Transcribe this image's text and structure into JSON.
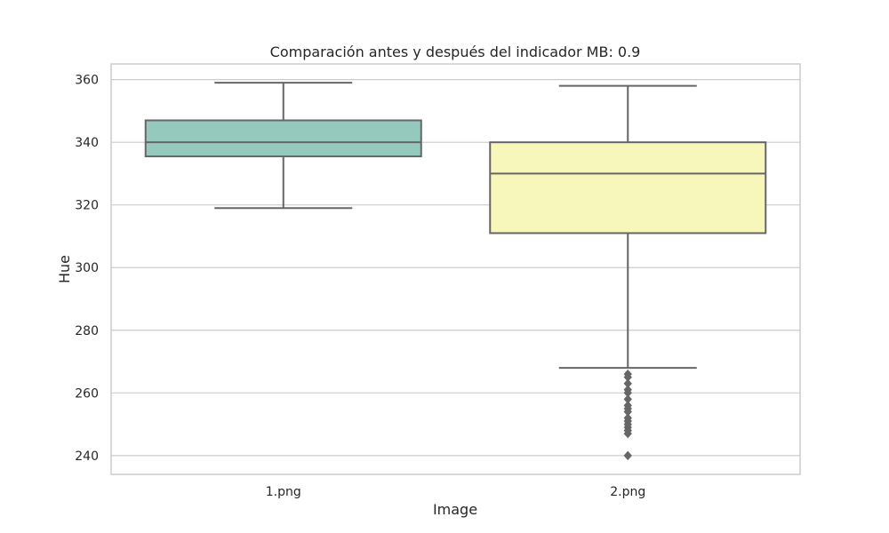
{
  "chart_data": {
    "type": "box",
    "title": "Comparación antes y después del indicador MB: 0.9",
    "xlabel": "Image",
    "ylabel": "Hue",
    "ylim": [
      234,
      365
    ],
    "yticks": [
      240,
      260,
      280,
      300,
      320,
      340,
      360
    ],
    "grid": true,
    "categories": [
      "1.png",
      "2.png"
    ],
    "boxes": [
      {
        "category": "1.png",
        "whisker_low": 319,
        "q1": 335.5,
        "median": 340,
        "q3": 347,
        "whisker_high": 359,
        "outliers": [],
        "color": "#96c9bd"
      },
      {
        "category": "2.png",
        "whisker_low": 268,
        "q1": 311,
        "median": 330,
        "q3": 340,
        "whisker_high": 358,
        "outliers": [
          266,
          265,
          263,
          261,
          260,
          258,
          256,
          255,
          254,
          252,
          251,
          250,
          249,
          248,
          247,
          240
        ],
        "color": "#f7f7bb"
      }
    ],
    "line_color": "#666666",
    "grid_color": "#cccccc"
  }
}
